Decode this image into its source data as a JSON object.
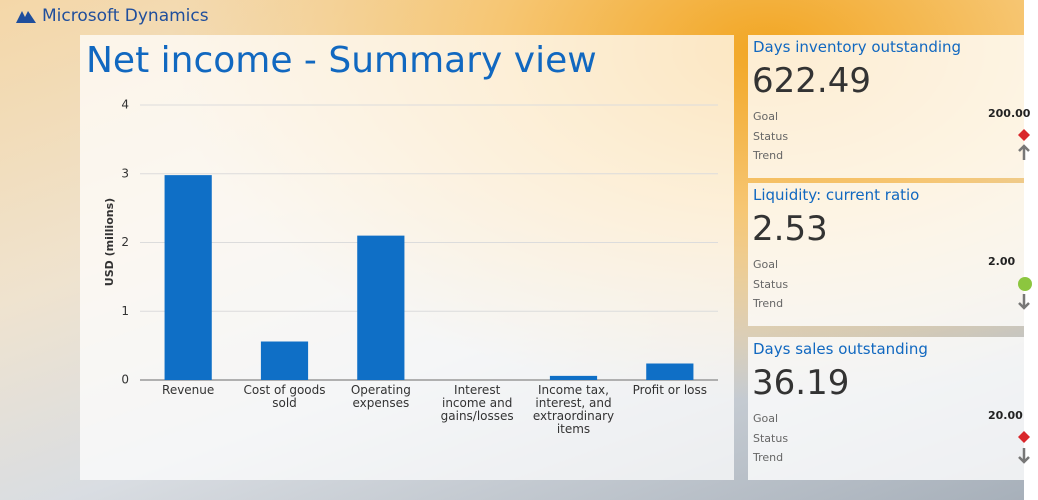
{
  "header": {
    "brand": "Microsoft Dynamics"
  },
  "chart_data": {
    "type": "bar",
    "title": "Net income - Summary view",
    "y_label": "USD (millions)",
    "categories": [
      "Revenue",
      "Cost of goods sold",
      "Operating expenses",
      "Interest income and gains/losses",
      "Income tax, interest, and extraordinary items",
      "Profit or loss"
    ],
    "values": [
      2.98,
      0.56,
      2.1,
      0,
      0.06,
      0.24
    ],
    "color": "#0f6fc6",
    "ylim": [
      0,
      4
    ],
    "yticks": [
      0,
      1,
      2,
      3,
      4
    ],
    "grid": true
  },
  "cards": [
    {
      "title": "Days inventory outstanding",
      "value": "622.49",
      "goal_label": "Goal",
      "goal": "200.00",
      "status_label": "Status",
      "trend_label": "Trend"
    },
    {
      "title": "Liquidity: current ratio",
      "value": "2.53",
      "goal_label": "Goal",
      "goal": "2.00",
      "status_label": "Status",
      "trend_label": "Trend"
    },
    {
      "title": "Days sales outstanding",
      "value": "36.19",
      "goal_label": "Goal",
      "goal": "20.00",
      "status_label": "Status",
      "trend_label": "Trend"
    }
  ]
}
